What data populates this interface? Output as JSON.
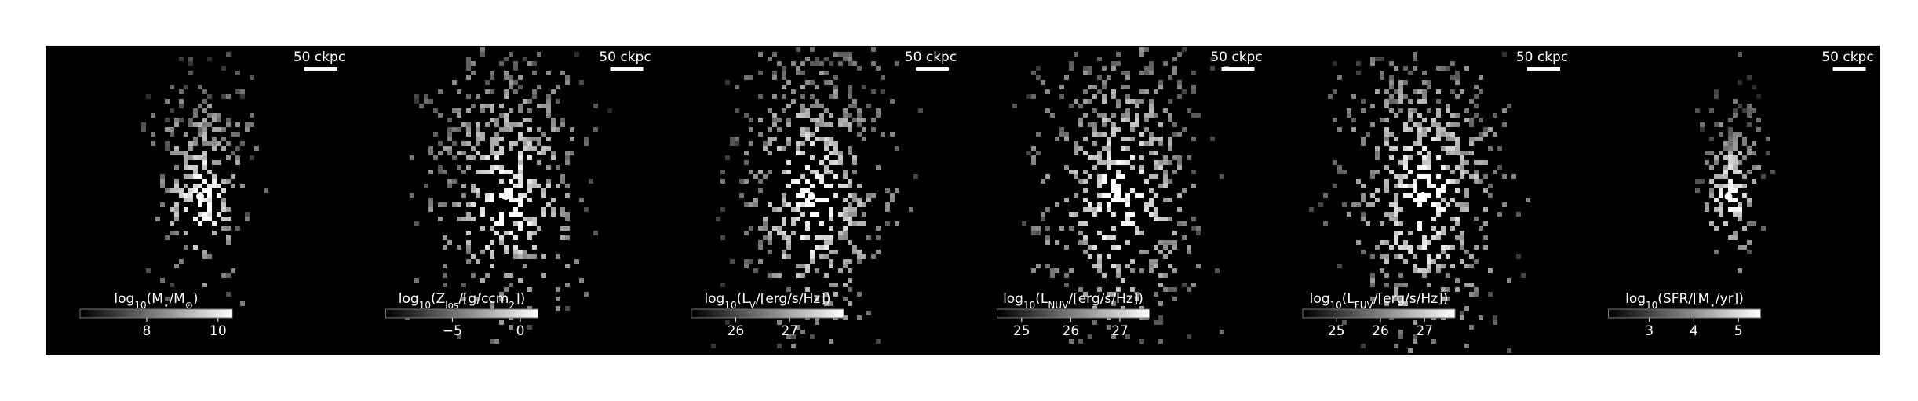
{
  "panels": [
    {
      "scale_label": "50 ckpc",
      "colorbar": {
        "label": [
          "log",
          "10",
          "(M",
          "⋆",
          "/M",
          "⊙",
          ")"
        ],
        "lim": [
          6.13,
          10.4
        ],
        "ticks": [
          8,
          10
        ]
      }
    },
    {
      "scale_label": "50 ckpc",
      "colorbar": {
        "label": [
          "log",
          "10",
          "(Z",
          "los",
          "/[g/ccm",
          "2",
          "])"
        ],
        "lim": [
          -9.9,
          1.3
        ],
        "ticks": [
          {
            "value": -5,
            "label": "−5"
          },
          0
        ]
      }
    },
    {
      "scale_label": "50 ckpc",
      "colorbar": {
        "label": [
          "log",
          "10",
          "(L",
          "V",
          "/[erg/s/Hz])"
        ],
        "lim": [
          25.18,
          28.0
        ],
        "ticks": [
          26,
          27
        ]
      }
    },
    {
      "scale_label": "50 ckpc",
      "colorbar": {
        "label": [
          "log",
          "10",
          "(L",
          "NUV",
          "/[erg/s/Hz])"
        ],
        "lim": [
          24.5,
          27.6
        ],
        "ticks": [
          25,
          26,
          27
        ]
      }
    },
    {
      "scale_label": "50 ckpc",
      "colorbar": {
        "label": [
          "log",
          "10",
          "(L",
          "FUV",
          "/[erg/s/Hz])"
        ],
        "lim": [
          24.24,
          27.69
        ],
        "ticks": [
          25,
          26,
          27
        ]
      }
    },
    {
      "scale_label": "50 ckpc",
      "colorbar": {
        "label": [
          "log",
          "10",
          "(SFR/[M",
          "⋆",
          "/yr])"
        ],
        "lim": [
          2.08,
          5.5
        ],
        "ticks": [
          3,
          4,
          5
        ]
      }
    }
  ]
}
